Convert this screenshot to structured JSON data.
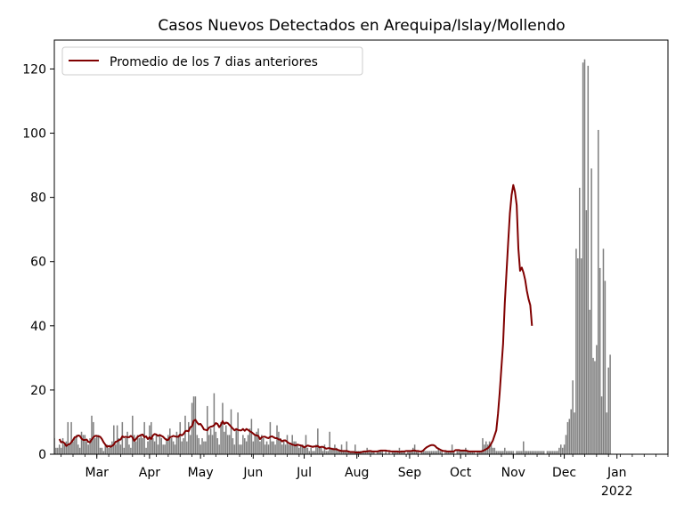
{
  "chart_data": {
    "type": "bar",
    "title": "Casos Nuevos Detectados en Arequipa/Islay/Mollendo",
    "xlabel": "",
    "ylabel": "",
    "ylim": [
      0,
      129
    ],
    "x_range": [
      "2021-02-04",
      "2022-01-31"
    ],
    "grid": false,
    "legend_position": "top-left",
    "colors": {
      "bars": "#808080",
      "line": "#800000"
    },
    "y_ticks": [
      0,
      20,
      40,
      60,
      80,
      100,
      120
    ],
    "x_ticks": [
      {
        "date": "2021-03-01",
        "label": "Mar"
      },
      {
        "date": "2021-04-01",
        "label": "Apr"
      },
      {
        "date": "2021-05-01",
        "label": "May"
      },
      {
        "date": "2021-06-01",
        "label": "Jun"
      },
      {
        "date": "2021-07-01",
        "label": "Jul"
      },
      {
        "date": "2021-08-01",
        "label": "Aug"
      },
      {
        "date": "2021-09-01",
        "label": "Sep"
      },
      {
        "date": "2021-10-01",
        "label": "Oct"
      },
      {
        "date": "2021-11-01",
        "label": "Nov"
      },
      {
        "date": "2021-12-01",
        "label": "Dec"
      },
      {
        "date": "2022-01-01",
        "label": "Jan",
        "sublabel": "2022"
      }
    ],
    "series": [
      {
        "kind": "bar",
        "start_date": "2021-02-01",
        "values": [
          5,
          11,
          3,
          5,
          2,
          2,
          3,
          2,
          5,
          3,
          4,
          10,
          3,
          10,
          4,
          5,
          6,
          3,
          2,
          7,
          6,
          6,
          4,
          3,
          5,
          12,
          10,
          5,
          6,
          6,
          2,
          2,
          1,
          3,
          3,
          2,
          3,
          4,
          9,
          3,
          9,
          5,
          3,
          10,
          2,
          5,
          7,
          3,
          2,
          12,
          6,
          4,
          6,
          5,
          6,
          5,
          10,
          2,
          4,
          9,
          10,
          5,
          4,
          6,
          3,
          6,
          5,
          3,
          3,
          5,
          6,
          8,
          5,
          4,
          3,
          7,
          6,
          10,
          4,
          5,
          12,
          4,
          10,
          6,
          16,
          18,
          18,
          6,
          5,
          3,
          5,
          4,
          4,
          15,
          6,
          8,
          6,
          19,
          7,
          5,
          3,
          10,
          16,
          7,
          9,
          6,
          6,
          14,
          5,
          3,
          8,
          13,
          3,
          3,
          6,
          5,
          4,
          6,
          8,
          11,
          4,
          6,
          7,
          8,
          4,
          6,
          5,
          3,
          4,
          3,
          10,
          4,
          4,
          3,
          9,
          7,
          5,
          3,
          4,
          3,
          6,
          3,
          3,
          6,
          4,
          4,
          3,
          2,
          3,
          3,
          2,
          6,
          2,
          1,
          2,
          1,
          1,
          3,
          8,
          2,
          2,
          1,
          3,
          1,
          1,
          7,
          2,
          2,
          3,
          2,
          1,
          1,
          3,
          1,
          1,
          4,
          1,
          1,
          1,
          1,
          3,
          1,
          1,
          1,
          1,
          1,
          1,
          2,
          1,
          1,
          1,
          1,
          0,
          1,
          1,
          1,
          1,
          0,
          1,
          0,
          1,
          0,
          1,
          1,
          1,
          1,
          2,
          1,
          1,
          1,
          0,
          1,
          1,
          1,
          2,
          3,
          1,
          1,
          0,
          1,
          1,
          1,
          1,
          1,
          1,
          1,
          1,
          1,
          1,
          2,
          1,
          1,
          0,
          1,
          1,
          1,
          1,
          3,
          1,
          0,
          1,
          1,
          1,
          1,
          1,
          2,
          1,
          1,
          1,
          1,
          1,
          0,
          1,
          1,
          1,
          5,
          3,
          4,
          3,
          4,
          3,
          2,
          2,
          1,
          1,
          1,
          1,
          1,
          2,
          1,
          1,
          1,
          1,
          1,
          0,
          1,
          1,
          1,
          1,
          4,
          1,
          1,
          1,
          1,
          1,
          1,
          1,
          1,
          1,
          1,
          1,
          1,
          0,
          1,
          1,
          1,
          1,
          1,
          1,
          1,
          2,
          3,
          2,
          3,
          6,
          10,
          11,
          14,
          23,
          13,
          64,
          61,
          83,
          61,
          122,
          123,
          76,
          121,
          45,
          89,
          30,
          29,
          34,
          101,
          58,
          18,
          64,
          54,
          13,
          27,
          31
        ]
      },
      {
        "kind": "line",
        "name": "Promedio de los 7 dias anteriores",
        "start_date": "2021-02-07",
        "values": [
          4.71,
          3.71,
          3.86,
          3.43,
          2.57,
          3.0,
          3.14,
          3.71,
          4.43,
          5.29,
          5.43,
          5.86,
          5.71,
          4.86,
          4.43,
          4.43,
          4.57,
          3.86,
          3.71,
          4.57,
          5.29,
          5.71,
          5.71,
          5.57,
          5.43,
          4.71,
          3.71,
          3.0,
          2.29,
          2.57,
          2.29,
          2.57,
          3.0,
          3.86,
          4.0,
          4.43,
          4.57,
          5.57,
          5.29,
          5.43,
          5.29,
          5.29,
          5.71,
          5.29,
          4.14,
          4.71,
          5.43,
          5.71,
          6.0,
          6.14,
          5.29,
          5.57,
          4.71,
          5.29,
          4.71,
          5.86,
          6.29,
          6.14,
          5.71,
          6.0,
          5.71,
          5.43,
          4.86,
          4.43,
          4.43,
          5.29,
          5.43,
          5.71,
          5.57,
          5.43,
          5.43,
          6.14,
          5.86,
          6.29,
          7.14,
          7.29,
          7.14,
          8.43,
          8.71,
          10.43,
          10.71,
          9.86,
          9.29,
          9.43,
          8.71,
          7.71,
          7.57,
          7.43,
          8.29,
          8.57,
          8.71,
          9.0,
          9.71,
          9.43,
          8.43,
          9.14,
          10.29,
          9.43,
          9.86,
          9.71,
          9.14,
          8.57,
          8.0,
          7.43,
          7.86,
          7.57,
          7.43,
          7.43,
          7.86,
          7.29,
          7.86,
          7.57,
          7.14,
          6.86,
          6.43,
          6.0,
          5.86,
          5.71,
          4.71,
          5.29,
          5.43,
          5.43,
          5.14,
          5.0,
          5.43,
          5.57,
          5.29,
          5.0,
          5.0,
          4.57,
          4.57,
          4.0,
          4.29,
          4.29,
          3.86,
          3.43,
          3.29,
          3.0,
          2.86,
          2.71,
          3.0,
          2.86,
          2.71,
          2.57,
          2.14,
          2.43,
          2.71,
          2.57,
          2.43,
          2.29,
          2.43,
          2.43,
          2.57,
          2.14,
          2.29,
          2.29,
          2.0,
          1.71,
          1.86,
          1.86,
          1.71,
          1.57,
          1.57,
          1.57,
          1.29,
          1.14,
          1.0,
          1.0,
          1.0,
          1.0,
          0.86,
          0.71,
          0.71,
          0.71,
          0.57,
          0.57,
          0.57,
          0.57,
          0.71,
          0.86,
          0.86,
          0.86,
          1.0,
          1.0,
          0.86,
          0.86,
          0.86,
          0.86,
          1.0,
          1.14,
          1.14,
          1.14,
          1.14,
          1.0,
          1.0,
          0.86,
          0.86,
          0.86,
          0.86,
          0.86,
          0.71,
          0.86,
          0.86,
          0.86,
          1.0,
          1.0,
          1.0,
          1.0,
          1.14,
          1.14,
          1.0,
          1.0,
          0.86,
          0.86,
          1.14,
          1.71,
          2.14,
          2.43,
          2.71,
          2.86,
          2.86,
          2.57,
          2.0,
          1.71,
          1.43,
          1.14,
          1.0,
          1.0,
          0.86,
          0.86,
          0.86,
          0.86,
          0.86,
          1.29,
          1.29,
          1.29,
          1.14,
          1.14,
          1.14,
          1.14,
          1.0,
          0.86,
          0.86,
          0.86,
          0.86,
          0.86,
          0.86,
          0.86,
          0.86,
          1.0,
          1.29,
          1.57,
          1.86,
          2.43,
          3.29,
          4.29,
          5.86,
          7.43,
          12.57,
          19.14,
          26.86,
          34.43,
          47.0,
          56.57,
          66.0,
          75.0,
          80.71,
          83.86,
          81.71,
          77.57,
          64.0,
          57.14,
          58.14,
          56.57,
          54.29,
          50.86,
          48.29,
          46.43,
          40.0
        ]
      }
    ]
  }
}
